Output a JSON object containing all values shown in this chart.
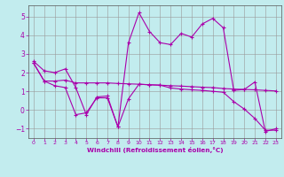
{
  "xlabel": "Windchill (Refroidissement éolien,°C)",
  "background_color": "#c2ecee",
  "line_color": "#aa00aa",
  "grid_color": "#999999",
  "xlim": [
    -0.5,
    23.5
  ],
  "ylim": [
    -1.5,
    5.6
  ],
  "yticks": [
    -1,
    0,
    1,
    2,
    3,
    4,
    5
  ],
  "xticks": [
    0,
    1,
    2,
    3,
    4,
    5,
    6,
    7,
    8,
    9,
    10,
    11,
    12,
    13,
    14,
    15,
    16,
    17,
    18,
    19,
    20,
    21,
    22,
    23
  ],
  "line1_x": [
    0,
    1,
    2,
    3,
    4,
    5,
    6,
    7,
    8,
    9,
    10,
    11,
    12,
    13,
    14,
    15,
    16,
    17,
    18,
    19,
    20,
    21,
    22,
    23
  ],
  "line1_y": [
    2.6,
    2.1,
    2.0,
    2.2,
    1.2,
    -0.25,
    0.7,
    0.75,
    -0.9,
    3.6,
    5.2,
    4.2,
    3.6,
    3.5,
    4.1,
    3.9,
    4.6,
    4.9,
    4.4,
    1.05,
    1.1,
    1.5,
    -1.15,
    -1.0
  ],
  "line2_x": [
    0,
    1,
    2,
    3,
    4,
    5,
    6,
    7,
    8,
    9,
    10,
    11,
    12,
    13,
    14,
    15,
    16,
    17,
    18,
    19,
    20,
    21,
    22,
    23
  ],
  "line2_y": [
    2.5,
    1.55,
    1.55,
    1.6,
    1.45,
    1.45,
    1.45,
    1.45,
    1.42,
    1.4,
    1.38,
    1.35,
    1.33,
    1.3,
    1.28,
    1.25,
    1.22,
    1.2,
    1.15,
    1.12,
    1.1,
    1.08,
    1.05,
    1.02
  ],
  "line3_x": [
    0,
    1,
    2,
    3,
    4,
    5,
    6,
    7,
    8,
    9,
    10,
    11,
    12,
    13,
    14,
    15,
    16,
    17,
    18,
    19,
    20,
    21,
    22,
    23
  ],
  "line3_y": [
    2.5,
    1.55,
    1.3,
    1.2,
    -0.25,
    -0.15,
    0.65,
    0.65,
    -0.9,
    0.6,
    1.38,
    1.35,
    1.33,
    1.18,
    1.12,
    1.08,
    1.05,
    1.0,
    0.95,
    0.45,
    0.05,
    -0.45,
    -1.08,
    -1.08
  ]
}
